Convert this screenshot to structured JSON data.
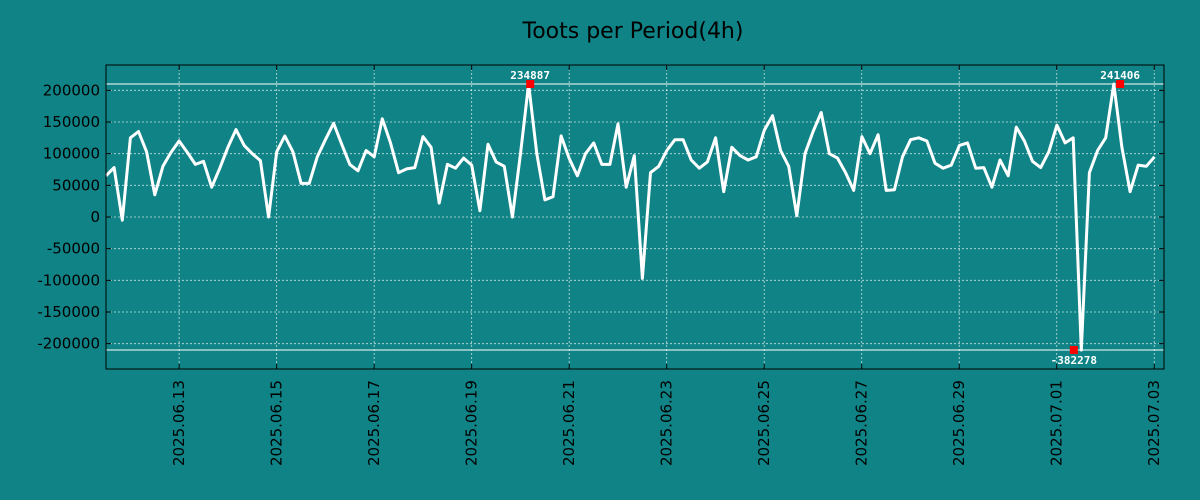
{
  "chart_data": {
    "type": "line",
    "title": "Toots per Period(4h)",
    "xlabel": "",
    "ylabel": "",
    "ylim": [
      -240000,
      240000
    ],
    "yticks": [
      200000,
      150000,
      100000,
      50000,
      0,
      -50000,
      -100000,
      -150000,
      -200000
    ],
    "ytick_labels": [
      "200000",
      "150000",
      "100000",
      "50000",
      "0",
      "-50000",
      "-100000",
      "-150000",
      "-200000"
    ],
    "x_range_days": [
      -1.5,
      20.2
    ],
    "x_ticks": [
      {
        "day": 0,
        "label": "2025.06.13"
      },
      {
        "day": 2,
        "label": "2025.06.15"
      },
      {
        "day": 4,
        "label": "2025.06.17"
      },
      {
        "day": 6,
        "label": "2025.06.19"
      },
      {
        "day": 8,
        "label": "2025.06.21"
      },
      {
        "day": 10,
        "label": "2025.06.23"
      },
      {
        "day": 12,
        "label": "2025.06.25"
      },
      {
        "day": 14,
        "label": "2025.06.27"
      },
      {
        "day": 16,
        "label": "2025.06.29"
      },
      {
        "day": 18,
        "label": "2025.07.01"
      },
      {
        "day": 20,
        "label": "2025.07.03"
      }
    ],
    "grid": true,
    "reference_lines": [
      210000,
      -210000
    ],
    "series": [
      {
        "name": "toots",
        "x_start_day": -1.5,
        "x_step_day": 0.1667,
        "values": [
          65000,
          78000,
          -5000,
          125000,
          135000,
          103000,
          35000,
          80000,
          102000,
          120000,
          102000,
          83000,
          88000,
          47000,
          77000,
          110000,
          138000,
          113000,
          100000,
          89000,
          0,
          103000,
          128000,
          103000,
          53000,
          53000,
          95000,
          122000,
          148000,
          115000,
          83000,
          73000,
          105000,
          95000,
          155000,
          117000,
          70000,
          76000,
          78000,
          127000,
          110000,
          22000,
          83000,
          77000,
          93000,
          82000,
          10000,
          115000,
          87000,
          80000,
          0,
          100000,
          210000,
          100000,
          27000,
          32000,
          128000,
          92000,
          65000,
          100000,
          117000,
          83000,
          83000,
          147000,
          47000,
          97000,
          -97000,
          70000,
          80000,
          105000,
          122000,
          122000,
          90000,
          77000,
          87000,
          125000,
          40000,
          110000,
          97000,
          90000,
          95000,
          137000,
          160000,
          105000,
          80000,
          2000,
          100000,
          135000,
          165000,
          100000,
          93000,
          70000,
          42000,
          127000,
          100000,
          130000,
          42000,
          43000,
          95000,
          122000,
          125000,
          120000,
          85000,
          77000,
          82000,
          113000,
          117000,
          77000,
          78000,
          47000,
          90000,
          65000,
          142000,
          120000,
          88000,
          78000,
          103000,
          145000,
          117000,
          125000,
          -210000,
          70000,
          105000,
          125000,
          210000,
          110000,
          40000,
          82000,
          80000,
          95000
        ]
      }
    ],
    "annotations": [
      {
        "day": 7.2,
        "value": 210000,
        "label": "234887",
        "position": "above"
      },
      {
        "day": 18.35,
        "value": -210000,
        "label": "-382278",
        "position": "below"
      },
      {
        "day": 19.3,
        "value": 210000,
        "label": "241406",
        "position": "above"
      }
    ],
    "colors": {
      "background": "#108386",
      "line": "#ffffff",
      "grid": "#ffffff",
      "axis": "#000000",
      "marker": "#ff0000"
    }
  }
}
